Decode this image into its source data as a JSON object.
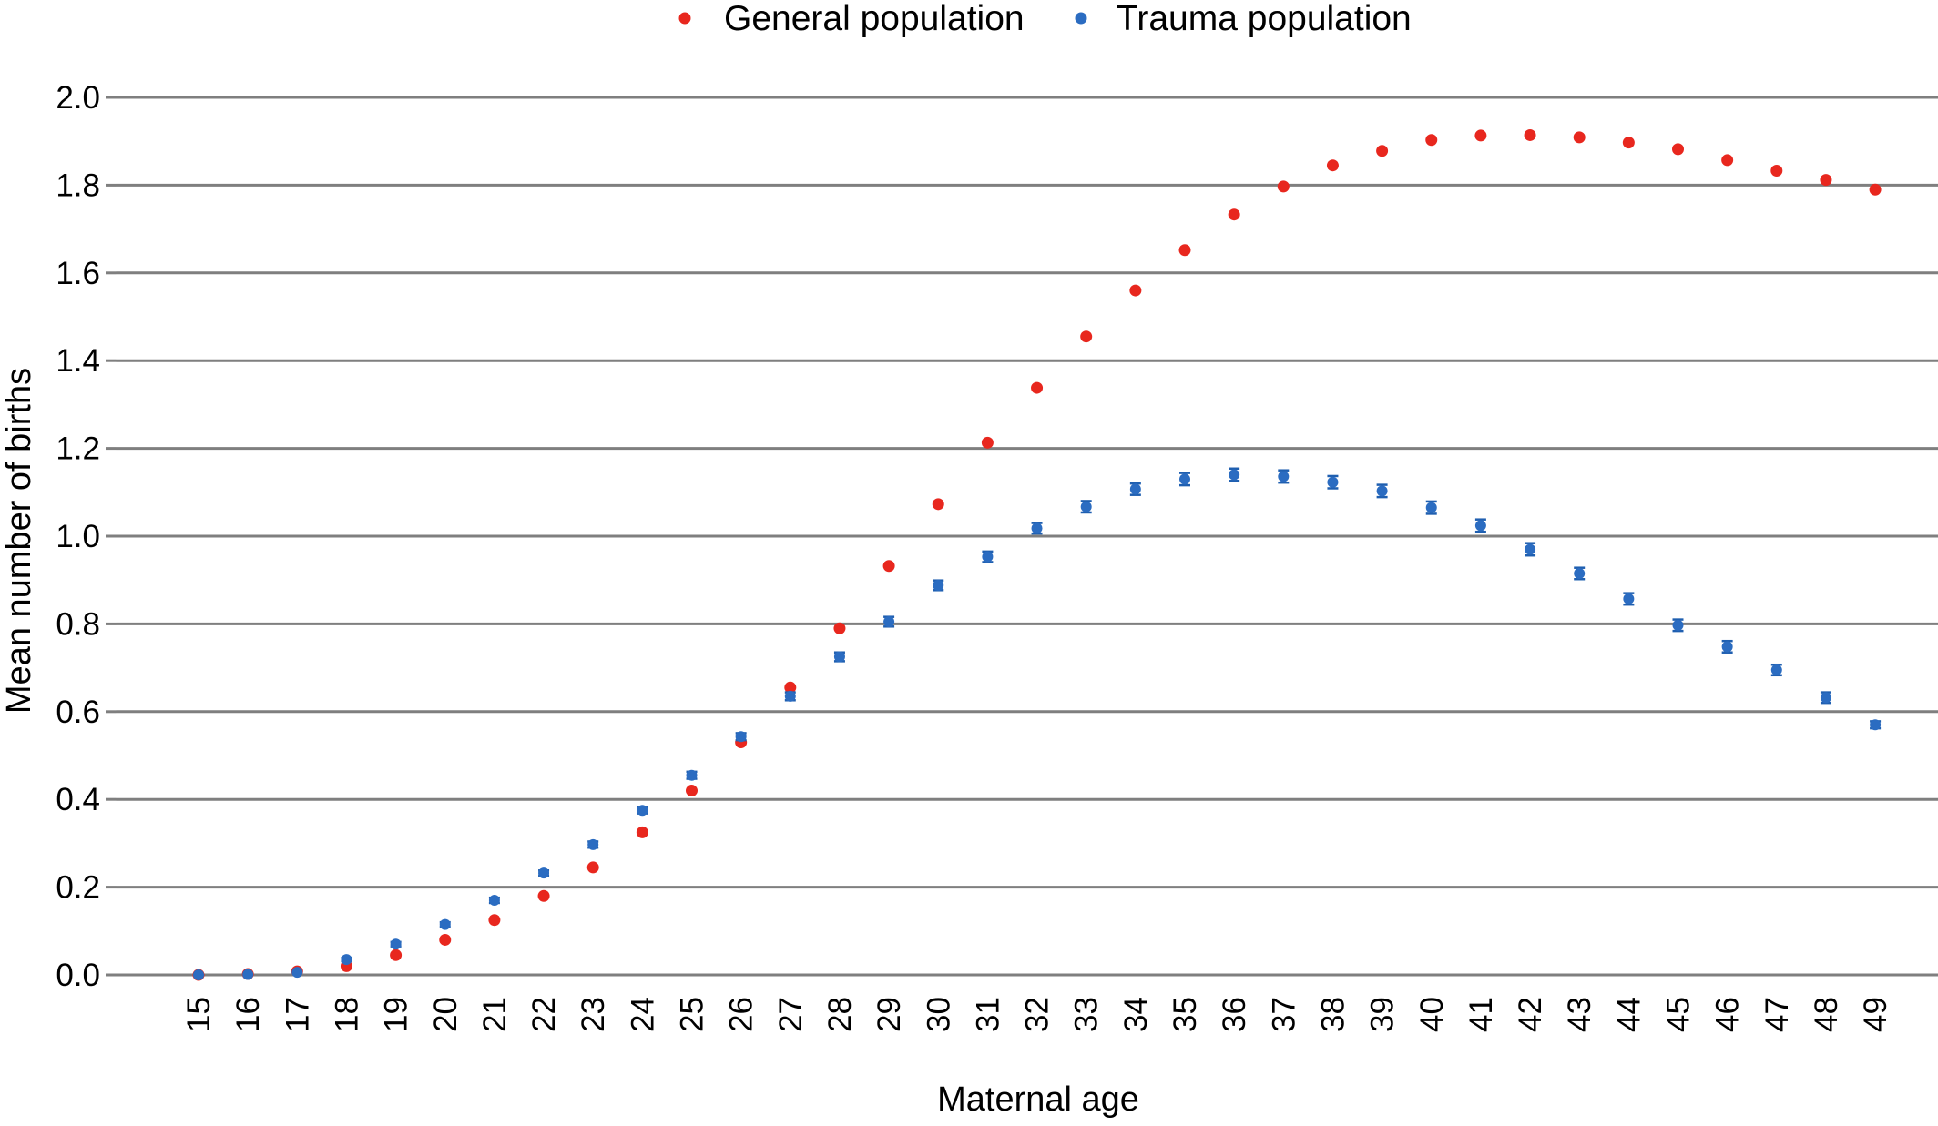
{
  "chart_data": {
    "type": "scatter",
    "title": "",
    "xlabel": "Maternal age",
    "ylabel": "Mean number of births",
    "x": [
      15,
      16,
      17,
      18,
      19,
      20,
      21,
      22,
      23,
      24,
      25,
      26,
      27,
      28,
      29,
      30,
      31,
      32,
      33,
      34,
      35,
      36,
      37,
      38,
      39,
      40,
      41,
      42,
      43,
      44,
      45,
      46,
      47,
      48,
      49
    ],
    "ylim": [
      0,
      2.0
    ],
    "yticks": [
      "0.0",
      "0.2",
      "0.4",
      "0.6",
      "0.8",
      "1.0",
      "1.2",
      "1.4",
      "1.6",
      "1.8",
      "2.0"
    ],
    "xticks": [
      "15",
      "16",
      "17",
      "18",
      "19",
      "20",
      "21",
      "22",
      "23",
      "24",
      "25",
      "26",
      "27",
      "28",
      "29",
      "30",
      "31",
      "32",
      "33",
      "34",
      "35",
      "36",
      "37",
      "38",
      "39",
      "40",
      "41",
      "42",
      "43",
      "44",
      "45",
      "46",
      "47",
      "48",
      "49"
    ],
    "grid": "horizontal",
    "legend_position": "top-center",
    "series": [
      {
        "name": "General population",
        "color": "#e8271e",
        "values": [
          0.0,
          0.002,
          0.008,
          0.02,
          0.045,
          0.08,
          0.125,
          0.18,
          0.245,
          0.325,
          0.42,
          0.53,
          0.655,
          0.79,
          0.932,
          1.073,
          1.213,
          1.338,
          1.455,
          1.56,
          1.652,
          1.733,
          1.797,
          1.845,
          1.878,
          1.903,
          1.913,
          1.914,
          1.909,
          1.897,
          1.882,
          1.857,
          1.833,
          1.812,
          1.79
        ]
      },
      {
        "name": "Trauma population",
        "color": "#2b6cc1",
        "values": [
          0.0,
          0.001,
          0.006,
          0.035,
          0.07,
          0.115,
          0.17,
          0.232,
          0.297,
          0.375,
          0.455,
          0.543,
          0.635,
          0.725,
          0.805,
          0.888,
          0.953,
          1.018,
          1.067,
          1.107,
          1.13,
          1.14,
          1.136,
          1.123,
          1.103,
          1.065,
          1.024,
          0.97,
          0.915,
          0.857,
          0.797,
          0.748,
          0.695,
          0.632,
          0.57
        ],
        "error": [
          0.0,
          0.001,
          0.002,
          0.004,
          0.005,
          0.005,
          0.006,
          0.006,
          0.007,
          0.007,
          0.008,
          0.008,
          0.009,
          0.01,
          0.011,
          0.011,
          0.012,
          0.012,
          0.013,
          0.013,
          0.014,
          0.014,
          0.014,
          0.014,
          0.014,
          0.014,
          0.014,
          0.014,
          0.013,
          0.013,
          0.013,
          0.013,
          0.012,
          0.012,
          0.008
        ]
      }
    ]
  }
}
